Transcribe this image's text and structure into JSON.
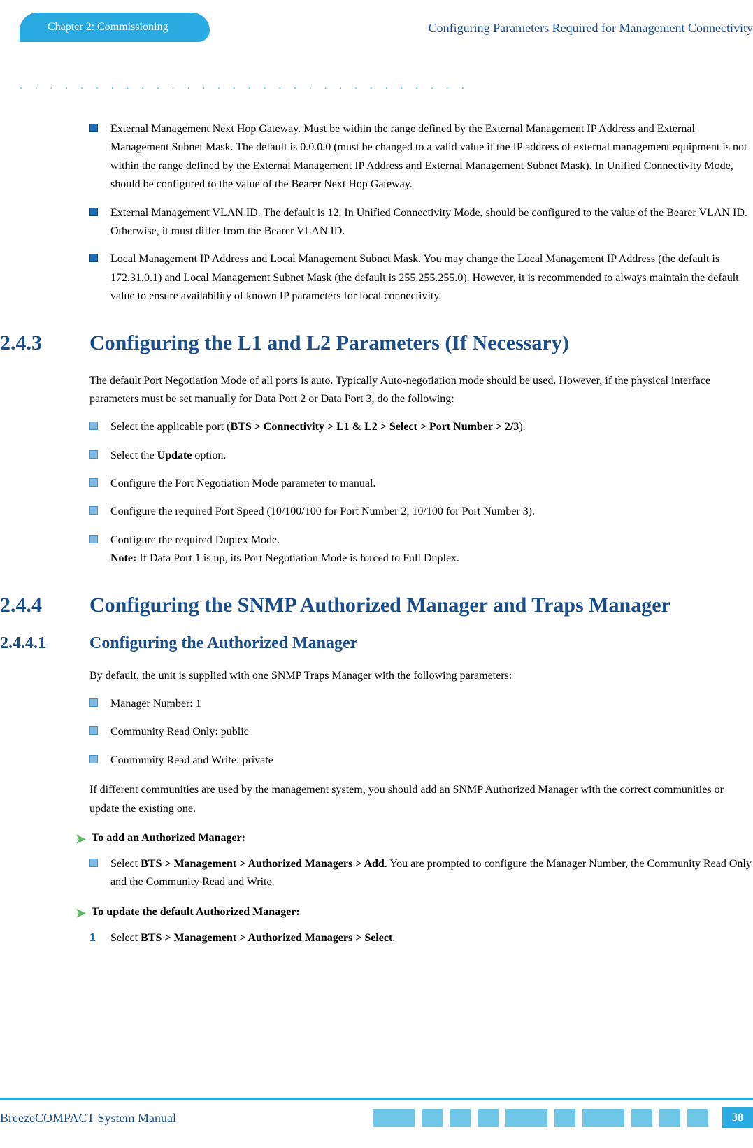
{
  "header": {
    "chapter": "Chapter 2: Commissioning",
    "right": "Configuring Parameters Required for Management Connectivity"
  },
  "intro_bullets": [
    "External Management Next Hop Gateway. Must be within the range defined by the External Management IP Address and External Management Subnet Mask. The default is 0.0.0.0 (must be changed to a valid value if the IP address of external management equipment is not within the range defined by the External Management IP Address and External Management Subnet Mask). In Unified Connectivity Mode, should be configured to the value of the Bearer Next Hop Gateway.",
    "External Management VLAN ID. The default is 12. In Unified Connectivity Mode, should be configured to the value of the Bearer VLAN ID. Otherwise, it must differ from the Bearer VLAN ID.",
    "Local Management IP Address and Local Management Subnet Mask. You may change the Local Management IP Address (the default is 172.31.0.1) and Local Management Subnet Mask (the default is 255.255.255.0). However, it is recommended to always maintain the default value to ensure availability of known IP parameters for local connectivity."
  ],
  "s243": {
    "num": "2.4.3",
    "title": "Configuring the L1 and L2 Parameters (If Necessary)",
    "para": "The default Port Negotiation Mode of all ports is auto. Typically Auto-negotiation mode should be used. However, if the physical interface parameters must be set manually for Data Port 2 or Data Port 3, do the following:",
    "b1_pre": "Select the applicable port (",
    "b1_bold": "BTS > Connectivity > L1 & L2 > Select > Port Number > 2/3",
    "b1_post": ").",
    "b2_pre": "Select the ",
    "b2_bold": "Update",
    "b2_post": " option.",
    "b3": "Configure the Port Negotiation Mode parameter to manual.",
    "b4": "Configure the required Port Speed (10/100/100 for Port Number 2, 10/100 for Port Number 3).",
    "b5": "Configure the required Duplex Mode.",
    "note_label": "Note:",
    "note_text": " If Data Port 1 is up, its Port Negotiation Mode is forced to Full Duplex."
  },
  "s244": {
    "num": "2.4.4",
    "title": "Configuring the SNMP Authorized Manager and Traps Manager"
  },
  "s2441": {
    "num": "2.4.4.1",
    "title": "Configuring the Authorized Manager",
    "para1": "By default, the unit is supplied with one SNMP Traps Manager with the following parameters:",
    "bullets": [
      "Manager Number: 1",
      "Community Read Only: public",
      "Community Read and Write: private"
    ],
    "para2": "If different communities are used by the management system, you should add an SNMP Authorized Manager with the correct communities or update the existing one.",
    "add_title": "To add an Authorized Manager:",
    "add_pre": "Select ",
    "add_bold": "BTS > Management > Authorized Managers > Add",
    "add_post": ". You are prompted to configure the Manager Number, the Community Read Only and the Community Read and Write.",
    "upd_title": "To update the default Authorized Manager:",
    "upd_num": "1",
    "upd_pre": "Select ",
    "upd_bold": "BTS > Management > Authorized Managers > Select",
    "upd_post": "."
  },
  "footer": {
    "title": "BreezeCOMPACT System Manual",
    "page": "38",
    "block_widths": [
      60,
      30,
      30,
      30,
      60,
      30,
      60,
      30,
      30,
      30
    ]
  },
  "colors": {
    "brand_blue": "#29abe2",
    "heading_blue": "#1a4e8a",
    "bullet_dark": "#1a6eb5",
    "bullet_light": "#7fb8e0",
    "arrow_green": "#5cb85c",
    "footer_block": "#6fc7e8"
  }
}
